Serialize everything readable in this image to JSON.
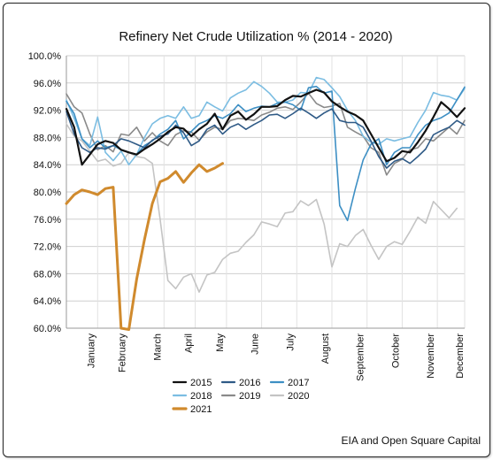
{
  "chart_data": {
    "type": "line",
    "title": "Refinery Net Crude Utilization % (2014 - 2020)",
    "credit": "EIA and Open Square Capital",
    "xlabel": "",
    "ylabel": "",
    "ylim": [
      60,
      100
    ],
    "xlim": [
      1,
      52
    ],
    "y_ticks": [
      "60.0%",
      "64.0%",
      "68.0%",
      "72.0%",
      "76.0%",
      "80.0%",
      "84.0%",
      "88.0%",
      "92.0%",
      "96.0%",
      "100.0%"
    ],
    "month_labels": [
      {
        "label": "January",
        "week": 5
      },
      {
        "label": "February",
        "week": 9
      },
      {
        "label": "March",
        "week": 13.5
      },
      {
        "label": "April",
        "week": 17.5
      },
      {
        "label": "May",
        "week": 21.5
      },
      {
        "label": "June",
        "week": 26
      },
      {
        "label": "July",
        "week": 30.5
      },
      {
        "label": "August",
        "week": 35
      },
      {
        "label": "September",
        "week": 39.5
      },
      {
        "label": "October",
        "week": 44
      },
      {
        "label": "November",
        "week": 48.5
      },
      {
        "label": "December",
        "week": 53
      }
    ],
    "grid": true,
    "legend_position": "bottom",
    "series": [
      {
        "name": "2015",
        "color": "#111111",
        "width": 2.2,
        "values": [
          92.2,
          89.5,
          84,
          85.5,
          87,
          87.5,
          87.2,
          86.2,
          85.8,
          85.5,
          86.3,
          87,
          87.8,
          88.8,
          89.5,
          89.3,
          88.2,
          89.2,
          90,
          91.5,
          89.2,
          91.2,
          91.8,
          90.6,
          91.4,
          92.5,
          92.5,
          92.6,
          93.5,
          94.1,
          94,
          94.5,
          95,
          94.6,
          93.3,
          92.5,
          91.8,
          91.3,
          90.5,
          88.5,
          86.5,
          84.5,
          85,
          86,
          85.8,
          87.3,
          89,
          91,
          93.2,
          92.2,
          91,
          92.3
        ]
      },
      {
        "name": "2016",
        "color": "#2f5a86",
        "width": 1.6,
        "values": [
          91.8,
          88.5,
          86.5,
          85.8,
          86.5,
          86.3,
          86.8,
          87.8,
          87.5,
          87,
          86.5,
          87.6,
          88.2,
          88.5,
          89.8,
          88.7,
          86.8,
          87.5,
          89.2,
          89.8,
          88.5,
          89.5,
          90,
          89.2,
          89.9,
          90.5,
          91.3,
          91.4,
          90.8,
          91.5,
          92.3,
          91.6,
          90.8,
          91.6,
          92.2,
          90.5,
          90.2,
          90.2,
          89.5,
          87.5,
          85.2,
          83.5,
          84.5,
          84.9,
          84.2,
          85.2,
          86.3,
          88.4,
          89,
          89.5,
          90.5,
          89.8
        ]
      },
      {
        "name": "2017",
        "color": "#3d8fc4",
        "width": 1.6,
        "values": [
          93.3,
          91.5,
          87.8,
          86.5,
          87.5,
          86.5,
          86.8,
          86.2,
          85.8,
          85.5,
          86.8,
          87.5,
          88.5,
          89.2,
          90.5,
          87.8,
          88.9,
          90,
          90.5,
          91.2,
          90.8,
          91.5,
          92.8,
          91.8,
          92.3,
          92.6,
          92.5,
          93,
          93.2,
          92.8,
          92,
          95.3,
          95.5,
          94.5,
          94.8,
          78,
          75.8,
          80.5,
          84.7,
          87,
          87.8,
          84,
          85.8,
          86.5,
          86.5,
          88.4,
          89.8,
          90.5,
          90.9,
          91.6,
          93.5,
          95.4
        ]
      },
      {
        "name": "2018",
        "color": "#7bbde2",
        "width": 1.6,
        "values": [
          93.5,
          90.8,
          87.8,
          86.8,
          91,
          85.8,
          84.6,
          86,
          84,
          85.5,
          88,
          90,
          90.8,
          91.2,
          90.8,
          92.5,
          90.8,
          91.2,
          93.2,
          92.5,
          91.9,
          93.8,
          94.5,
          95,
          96.2,
          95.5,
          94.5,
          93.2,
          93.2,
          93.5,
          94.6,
          94.5,
          96.8,
          96.5,
          95.3,
          94,
          92,
          90.5,
          88.2,
          87.3,
          87,
          87.8,
          87.5,
          87.8,
          88.1,
          90.2,
          92,
          94.6,
          94.2,
          94,
          93.5,
          95.2
        ]
      },
      {
        "name": "2019",
        "color": "#8a8a8a",
        "width": 1.6,
        "values": [
          94.4,
          92.5,
          91.6,
          88.5,
          86.2,
          86.8,
          85.9,
          88.5,
          88.3,
          89.5,
          87.5,
          88.7,
          87.5,
          86.8,
          88.4,
          89,
          88.8,
          87.6,
          88.8,
          89.5,
          89.2,
          90.5,
          90.8,
          90.7,
          90.5,
          91.3,
          91.7,
          92.3,
          92.5,
          92.1,
          93.2,
          94.5,
          93,
          92.4,
          92.6,
          93,
          89.5,
          88.8,
          88.2,
          86.5,
          85.8,
          82.5,
          84.2,
          84.8,
          86.2,
          86.5,
          87.8,
          87.5,
          88.5,
          89.5,
          88.5,
          90.5
        ]
      },
      {
        "name": "2020",
        "color": "#c4c4c4",
        "width": 1.6,
        "values": [
          90,
          88.2,
          87.5,
          86,
          84.5,
          84.8,
          83.8,
          84.2,
          85.8,
          85.2,
          85,
          84.2,
          76,
          67,
          65.8,
          67.5,
          68,
          65.3,
          67.8,
          68.2,
          70.1,
          71,
          71.3,
          72.6,
          73.7,
          75.6,
          75.3,
          74.9,
          76.9,
          77.1,
          78.7,
          78,
          78.9,
          75.3,
          69,
          72.4,
          72,
          73.6,
          74.5,
          72.2,
          70.1,
          72,
          72.7,
          72.3,
          74.2,
          76.3,
          75.4,
          78.6,
          77.4,
          76.2,
          77.6,
          null
        ]
      },
      {
        "name": "2021",
        "color": "#d08a2d",
        "width": 3,
        "values": [
          78.3,
          79.6,
          80.3,
          80,
          79.6,
          80.5,
          80.7,
          60,
          59.8,
          67.2,
          73,
          78.3,
          81.5,
          82,
          83,
          81.4,
          82.8,
          84,
          83,
          83.5,
          84.2,
          null,
          null,
          null,
          null,
          null,
          null,
          null,
          null,
          null,
          null,
          null,
          null,
          null,
          null,
          null,
          null,
          null,
          null,
          null,
          null,
          null,
          null,
          null,
          null,
          null,
          null,
          null,
          null,
          null,
          null,
          null
        ]
      }
    ]
  }
}
